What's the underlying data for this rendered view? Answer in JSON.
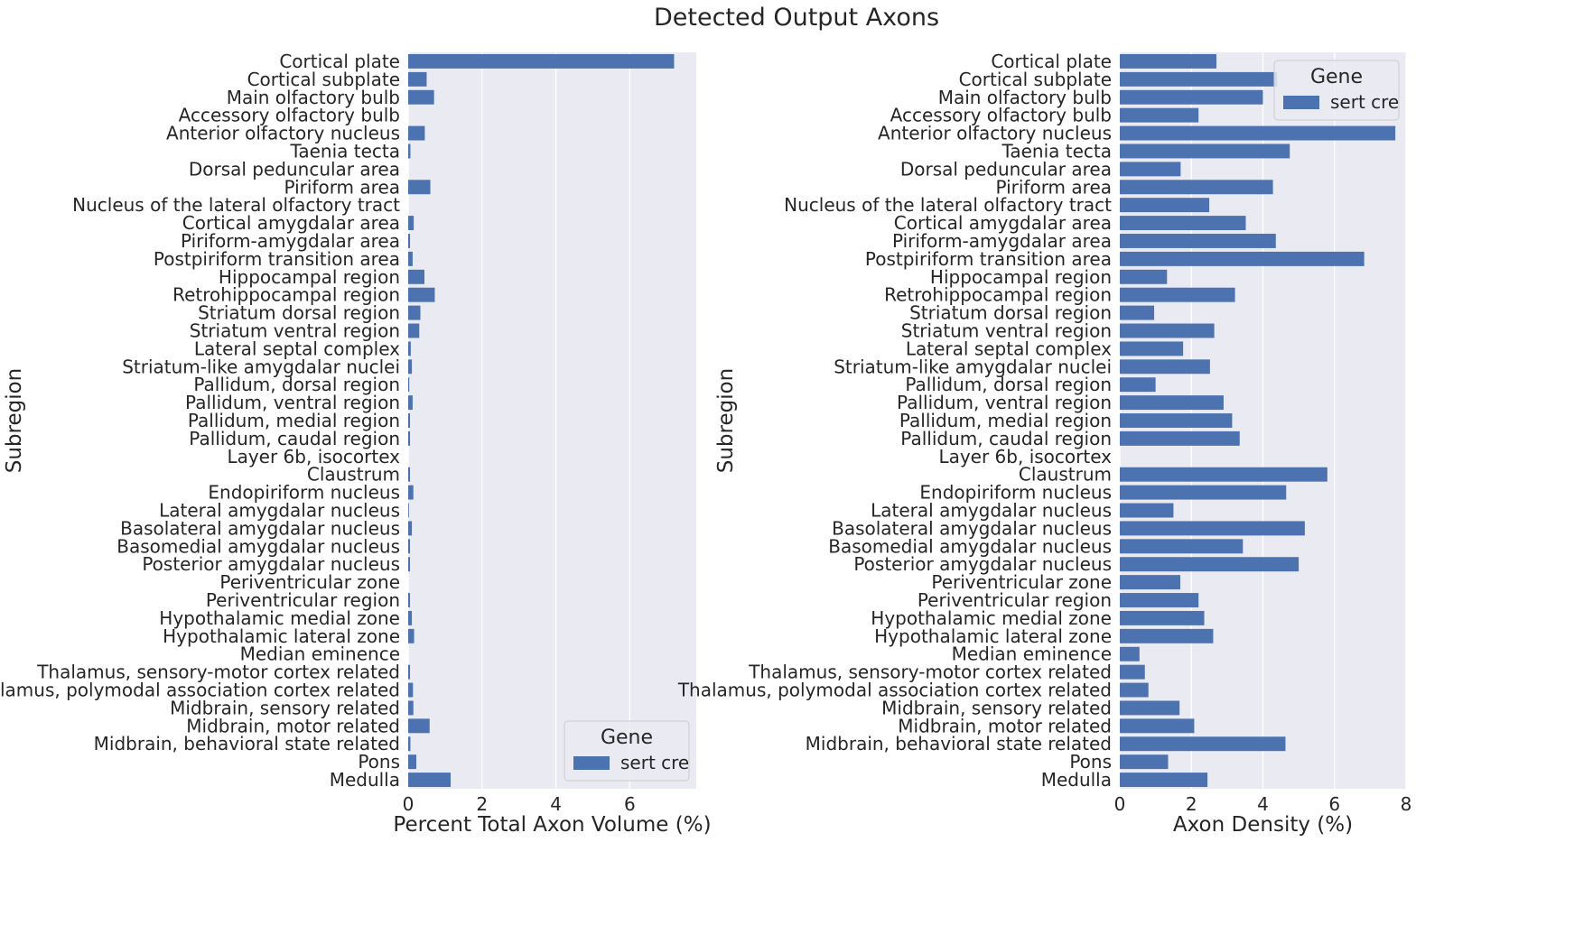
{
  "title": "Detected Output Axons",
  "chart_data": [
    {
      "type": "bar",
      "orientation": "horizontal",
      "ylabel": "Subregion",
      "xlabel": "Percent Total Axon Volume (%)",
      "xlim": [
        0,
        7.8
      ],
      "xticks": [
        0,
        2,
        4,
        6
      ],
      "grid": true,
      "legend": {
        "title": "Gene",
        "placement": "lower-right",
        "entries": [
          "sert cre"
        ]
      },
      "categories": [
        "Cortical plate",
        "Cortical subplate",
        "Main olfactory bulb",
        "Accessory olfactory bulb",
        "Anterior olfactory nucleus",
        "Taenia tecta",
        "Dorsal peduncular area",
        "Piriform area",
        "Nucleus of the lateral olfactory tract",
        "Cortical amygdalar area",
        "Piriform-amygdalar area",
        "Postpiriform transition area",
        "Hippocampal region",
        "Retrohippocampal region",
        "Striatum dorsal region",
        "Striatum ventral region",
        "Lateral septal complex",
        "Striatum-like amygdalar nuclei",
        "Pallidum, dorsal region",
        "Pallidum, ventral region",
        "Pallidum, medial region",
        "Pallidum, caudal region",
        "Layer 6b, isocortex",
        "Claustrum",
        "Endopiriform nucleus",
        "Lateral amygdalar nucleus",
        "Basolateral amygdalar nucleus",
        "Basomedial amygdalar nucleus",
        "Posterior amygdalar nucleus",
        "Periventricular zone",
        "Periventricular region",
        "Hypothalamic medial zone",
        "Hypothalamic lateral zone",
        "Median eminence",
        "Thalamus, sensory-motor cortex related",
        "Thalamus, polymodal association cortex related",
        "Midbrain, sensory related",
        "Midbrain, motor related",
        "Midbrain, behavioral state related",
        "Pons",
        "Medulla"
      ],
      "series": [
        {
          "name": "sert cre",
          "color": "#4c72b0",
          "values": [
            7.2,
            0.5,
            0.7,
            0.0,
            0.45,
            0.06,
            0.0,
            0.6,
            0.0,
            0.15,
            0.05,
            0.12,
            0.44,
            0.72,
            0.33,
            0.3,
            0.07,
            0.1,
            0.03,
            0.12,
            0.05,
            0.05,
            0.0,
            0.05,
            0.14,
            0.02,
            0.1,
            0.05,
            0.05,
            0.0,
            0.05,
            0.1,
            0.16,
            0.0,
            0.05,
            0.13,
            0.14,
            0.58,
            0.06,
            0.22,
            1.15
          ]
        }
      ]
    },
    {
      "type": "bar",
      "orientation": "horizontal",
      "ylabel": "Subregion",
      "xlabel": "Axon Density (%)",
      "xlim": [
        0,
        8
      ],
      "xticks": [
        0,
        2,
        4,
        6,
        8
      ],
      "grid": true,
      "legend": {
        "title": "Gene",
        "placement": "upper-right",
        "entries": [
          "sert cre"
        ]
      },
      "categories": [
        "Cortical plate",
        "Cortical subplate",
        "Main olfactory bulb",
        "Accessory olfactory bulb",
        "Anterior olfactory nucleus",
        "Taenia tecta",
        "Dorsal peduncular area",
        "Piriform area",
        "Nucleus of the lateral olfactory tract",
        "Cortical amygdalar area",
        "Piriform-amygdalar area",
        "Postpiriform transition area",
        "Hippocampal region",
        "Retrohippocampal region",
        "Striatum dorsal region",
        "Striatum ventral region",
        "Lateral septal complex",
        "Striatum-like amygdalar nuclei",
        "Pallidum, dorsal region",
        "Pallidum, ventral region",
        "Pallidum, medial region",
        "Pallidum, caudal region",
        "Layer 6b, isocortex",
        "Claustrum",
        "Endopiriform nucleus",
        "Lateral amygdalar nucleus",
        "Basolateral amygdalar nucleus",
        "Basomedial amygdalar nucleus",
        "Posterior amygdalar nucleus",
        "Periventricular zone",
        "Periventricular region",
        "Hypothalamic medial zone",
        "Hypothalamic lateral zone",
        "Median eminence",
        "Thalamus, sensory-motor cortex related",
        "Thalamus, polymodal association cortex related",
        "Midbrain, sensory related",
        "Midbrain, motor related",
        "Midbrain, behavioral state related",
        "Pons",
        "Medulla"
      ],
      "series": [
        {
          "name": "sert cre",
          "color": "#4c72b0",
          "values": [
            2.7,
            4.4,
            4.0,
            2.2,
            7.7,
            4.75,
            1.7,
            4.28,
            2.5,
            3.52,
            4.36,
            6.83,
            1.32,
            3.22,
            0.96,
            2.64,
            1.77,
            2.52,
            1.0,
            2.9,
            3.14,
            3.35,
            0.0,
            5.8,
            4.65,
            1.5,
            5.17,
            3.44,
            5.0,
            1.69,
            2.2,
            2.36,
            2.61,
            0.55,
            0.7,
            0.8,
            1.67,
            2.08,
            4.63,
            1.35,
            2.45
          ]
        }
      ]
    }
  ]
}
